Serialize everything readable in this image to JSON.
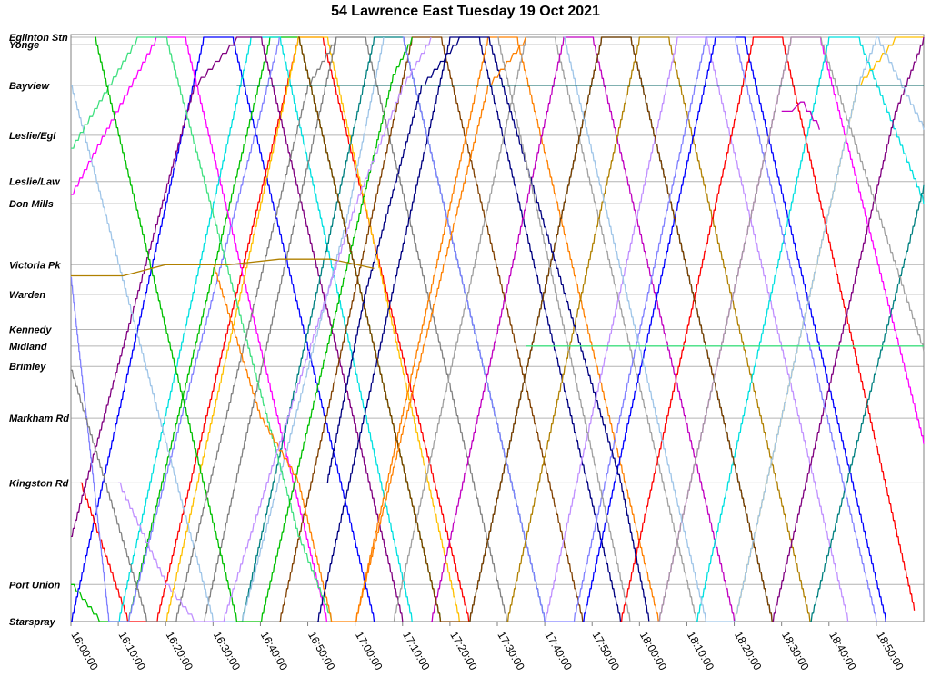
{
  "chart_data": {
    "type": "line",
    "title": "54 Lawrence East Tuesday 19 Oct 2021",
    "xlabel": "",
    "ylabel": "",
    "x_ticks": [
      "16:00:00",
      "16:10:00",
      "16:20:00",
      "16:30:00",
      "16:40:00",
      "16:50:00",
      "17:00:00",
      "17:10:00",
      "17:20:00",
      "17:30:00",
      "17:40:00",
      "17:50:00",
      "18:00:00",
      "18:10:00",
      "18:20:00",
      "18:30:00",
      "18:40:00",
      "18:50:00"
    ],
    "xlim": [
      "16:00",
      "19:00"
    ],
    "stops": [
      {
        "name": "Eglinton Stn",
        "pos": 0.0
      },
      {
        "name": "Yonge",
        "pos": 0.4
      },
      {
        "name": "Bayview",
        "pos": 2.6
      },
      {
        "name": "Leslie/Egl",
        "pos": 5.3
      },
      {
        "name": "Leslie/Law",
        "pos": 7.8
      },
      {
        "name": "Don Mills",
        "pos": 9.0
      },
      {
        "name": "Victoria Pk",
        "pos": 12.3
      },
      {
        "name": "Warden",
        "pos": 13.9
      },
      {
        "name": "Kennedy",
        "pos": 15.8
      },
      {
        "name": "Midland",
        "pos": 16.7
      },
      {
        "name": "Brimley",
        "pos": 17.8
      },
      {
        "name": "Markham Rd",
        "pos": 20.6
      },
      {
        "name": "Kingston Rd",
        "pos": 24.1
      },
      {
        "name": "Port Union",
        "pos": 29.6
      },
      {
        "name": "Starspray",
        "pos": 31.6
      }
    ],
    "grid": true,
    "legend": "none",
    "series_note": "",
    "colors": [
      "#0000ff",
      "#ff0000",
      "#00c000",
      "#ff00ff",
      "#00e0e0",
      "#ffc000",
      "#800080",
      "#808080",
      "#008080",
      "#804000",
      "#8080ff",
      "#000080",
      "#ff8000",
      "#a0a0a0",
      "#9fc5e8",
      "#c000c0",
      "#006060",
      "#b08000",
      "#40e080",
      "#c090ff"
    ],
    "series": [
      {
        "name": "",
        "points": [
          [
            "16:00",
            31.6
          ],
          [
            "16:28",
            0.0
          ],
          [
            "16:34",
            0.0
          ],
          [
            "17:04",
            31.6
          ]
        ]
      },
      {
        "name": "",
        "points": [
          [
            "16:02",
            24.1
          ],
          [
            "16:12",
            31.6
          ],
          [
            "16:18",
            31.6
          ],
          [
            "16:48",
            0.0
          ],
          [
            "16:53",
            0.0
          ],
          [
            "17:24",
            31.6
          ]
        ]
      },
      {
        "name": "",
        "points": [
          [
            "16:00",
            29.6
          ],
          [
            "16:06",
            31.6
          ],
          [
            "16:12",
            31.6
          ],
          [
            "16:42",
            0.0
          ],
          [
            "16:48",
            0.0
          ],
          [
            "17:18",
            31.6
          ]
        ]
      },
      {
        "name": "",
        "points": [
          [
            "16:00",
            8.5
          ],
          [
            "16:18",
            0.0
          ],
          [
            "16:24",
            0.0
          ],
          [
            "16:54",
            31.6
          ]
        ]
      },
      {
        "name": "",
        "points": [
          [
            "16:10",
            31.6
          ],
          [
            "16:38",
            0.0
          ],
          [
            "16:44",
            0.0
          ],
          [
            "17:12",
            31.6
          ]
        ]
      },
      {
        "name": "",
        "points": [
          [
            "16:20",
            31.6
          ],
          [
            "16:48",
            0.0
          ],
          [
            "16:54",
            0.0
          ],
          [
            "17:22",
            31.6
          ]
        ]
      },
      {
        "name": "",
        "points": [
          [
            "16:00",
            27.0
          ],
          [
            "16:26",
            2.6
          ],
          [
            "16:35",
            0.0
          ],
          [
            "16:40",
            0.0
          ],
          [
            "17:10",
            31.6
          ]
        ]
      },
      {
        "name": "",
        "points": [
          [
            "16:28",
            31.6
          ],
          [
            "16:56",
            0.0
          ],
          [
            "17:02",
            0.0
          ],
          [
            "17:32",
            31.6
          ]
        ]
      },
      {
        "name": "",
        "points": [
          [
            "16:36",
            31.6
          ],
          [
            "17:04",
            0.0
          ],
          [
            "17:10",
            0.0
          ],
          [
            "17:40",
            31.6
          ]
        ]
      },
      {
        "name": "",
        "points": [
          [
            "16:44",
            31.6
          ],
          [
            "17:12",
            0.0
          ],
          [
            "17:18",
            0.0
          ],
          [
            "17:48",
            31.6
          ]
        ]
      },
      {
        "name": "",
        "points": [
          [
            "16:00",
            13.0
          ],
          [
            "16:08",
            31.6
          ],
          [
            "16:12",
            31.6
          ],
          [
            "16:40",
            4.0
          ],
          [
            "16:44",
            0.0
          ]
        ]
      },
      {
        "name": "",
        "points": [
          [
            "16:52",
            31.6
          ],
          [
            "17:20",
            0.0
          ],
          [
            "17:26",
            0.0
          ],
          [
            "17:56",
            31.6
          ]
        ]
      },
      {
        "name": "",
        "points": [
          [
            "17:00",
            31.6
          ],
          [
            "17:28",
            0.0
          ],
          [
            "17:34",
            0.0
          ],
          [
            "18:04",
            31.6
          ]
        ]
      },
      {
        "name": "",
        "points": [
          [
            "17:08",
            31.6
          ],
          [
            "17:36",
            0.0
          ],
          [
            "17:42",
            0.0
          ],
          [
            "18:12",
            31.6
          ]
        ]
      },
      {
        "name": "",
        "points": [
          [
            "16:00",
            2.6
          ],
          [
            "16:30",
            31.6
          ],
          [
            "16:36",
            31.6
          ],
          [
            "16:58",
            10.0
          ],
          [
            "17:06",
            0.0
          ]
        ]
      },
      {
        "name": "",
        "points": [
          [
            "17:16",
            31.6
          ],
          [
            "17:44",
            0.0
          ],
          [
            "17:50",
            0.0
          ],
          [
            "18:20",
            31.6
          ]
        ]
      },
      {
        "name": "",
        "points": [
          [
            "17:24",
            31.6
          ],
          [
            "17:52",
            0.0
          ],
          [
            "17:58",
            0.0
          ],
          [
            "18:28",
            31.6
          ]
        ]
      },
      {
        "name": "",
        "points": [
          [
            "17:32",
            31.6
          ],
          [
            "18:00",
            0.0
          ],
          [
            "18:06",
            0.0
          ],
          [
            "18:36",
            31.6
          ]
        ]
      },
      {
        "name": "",
        "points": [
          [
            "16:00",
            6.0
          ],
          [
            "16:14",
            0.0
          ],
          [
            "16:20",
            0.0
          ],
          [
            "16:48",
            27.0
          ],
          [
            "16:55",
            31.6
          ]
        ]
      },
      {
        "name": "",
        "points": [
          [
            "17:40",
            31.6
          ],
          [
            "18:08",
            0.0
          ],
          [
            "18:14",
            0.0
          ],
          [
            "18:44",
            31.6
          ]
        ]
      },
      {
        "name": "",
        "points": [
          [
            "17:48",
            31.6
          ],
          [
            "18:16",
            0.0
          ],
          [
            "18:22",
            0.0
          ],
          [
            "18:52",
            31.6
          ]
        ]
      },
      {
        "name": "",
        "points": [
          [
            "17:56",
            31.6
          ],
          [
            "18:24",
            0.0
          ],
          [
            "18:30",
            0.0
          ],
          [
            "18:58",
            31.0
          ]
        ]
      },
      {
        "name": "",
        "points": [
          [
            "16:05",
            0.0
          ],
          [
            "16:35",
            31.6
          ],
          [
            "16:40",
            31.6
          ],
          [
            "17:08",
            2.0
          ],
          [
            "17:12",
            0.0
          ]
        ]
      },
      {
        "name": "",
        "points": [
          [
            "18:04",
            31.6
          ],
          [
            "18:32",
            0.0
          ],
          [
            "18:38",
            0.0
          ],
          [
            "19:00",
            22.0
          ]
        ]
      },
      {
        "name": "",
        "points": [
          [
            "18:12",
            31.6
          ],
          [
            "18:40",
            0.0
          ],
          [
            "18:46",
            0.0
          ],
          [
            "19:00",
            9.0
          ]
        ]
      },
      {
        "name": "",
        "points": [
          [
            "18:20",
            31.6
          ],
          [
            "18:46",
            2.6
          ],
          [
            "18:54",
            0.0
          ],
          [
            "19:00",
            0.0
          ]
        ]
      },
      {
        "name": "",
        "points": [
          [
            "18:28",
            31.6
          ],
          [
            "18:54",
            4.0
          ],
          [
            "19:00",
            0.0
          ]
        ]
      },
      {
        "name": "",
        "points": [
          [
            "16:00",
            18.0
          ],
          [
            "16:16",
            31.6
          ],
          [
            "16:22",
            31.6
          ],
          [
            "16:50",
            2.6
          ],
          [
            "16:56",
            0.0
          ]
        ]
      },
      {
        "name": "",
        "points": [
          [
            "18:36",
            31.6
          ],
          [
            "19:00",
            8.0
          ]
        ]
      },
      {
        "name": "",
        "points": [
          [
            "16:48",
            0.0
          ],
          [
            "17:18",
            31.6
          ],
          [
            "17:24",
            31.6
          ],
          [
            "17:52",
            0.0
          ],
          [
            "17:58",
            0.0
          ],
          [
            "18:28",
            31.6
          ]
        ]
      },
      {
        "name": "",
        "points": [
          [
            "17:10",
            0.0
          ],
          [
            "17:40",
            31.6
          ],
          [
            "17:46",
            31.6
          ],
          [
            "18:14",
            0.0
          ],
          [
            "18:20",
            0.0
          ],
          [
            "18:50",
            31.6
          ]
        ]
      },
      {
        "name": "",
        "points": [
          [
            "16:54",
            24.1
          ],
          [
            "17:02",
            13.9
          ],
          [
            "17:14",
            2.6
          ],
          [
            "17:22",
            0.0
          ],
          [
            "17:28",
            0.0
          ],
          [
            "17:56",
            24.1
          ],
          [
            "18:02",
            31.6
          ]
        ]
      },
      {
        "name": "",
        "points": [
          [
            "16:30",
            12.3
          ],
          [
            "16:40",
            20.6
          ],
          [
            "16:48",
            24.1
          ],
          [
            "16:55",
            31.6
          ],
          [
            "17:00",
            31.6
          ],
          [
            "17:28",
            2.6
          ],
          [
            "17:36",
            0.0
          ]
        ]
      },
      {
        "name": "",
        "points": [
          [
            "17:30",
            0.0
          ],
          [
            "17:58",
            31.6
          ],
          [
            "18:04",
            31.6
          ],
          [
            "18:32",
            0.0
          ],
          [
            "18:38",
            0.0
          ],
          [
            "19:00",
            17.0
          ]
        ]
      },
      {
        "name": "",
        "points": [
          [
            "17:44",
            0.0
          ],
          [
            "18:14",
            31.6
          ],
          [
            "18:20",
            31.6
          ],
          [
            "18:46",
            2.6
          ],
          [
            "18:50",
            0.0
          ],
          [
            "19:00",
            5.0
          ]
        ]
      },
      {
        "name": "",
        "points": [
          [
            "18:30",
            4.0
          ],
          [
            "18:34",
            3.5
          ],
          [
            "18:38",
            5.0
          ]
        ]
      },
      {
        "name": "",
        "points": [
          [
            "16:35",
            2.6
          ],
          [
            "19:00",
            2.6
          ]
        ]
      },
      {
        "name": "",
        "points": [
          [
            "16:00",
            12.9
          ],
          [
            "16:20",
            12.3
          ],
          [
            "16:44",
            12.0
          ],
          [
            "17:04",
            12.5
          ]
        ]
      },
      {
        "name": "",
        "points": [
          [
            "17:36",
            16.7
          ],
          [
            "18:20",
            16.7
          ],
          [
            "19:00",
            16.7
          ]
        ]
      },
      {
        "name": "",
        "points": [
          [
            "16:10",
            24.1
          ],
          [
            "16:20",
            29.6
          ],
          [
            "16:26",
            31.6
          ],
          [
            "16:32",
            31.6
          ],
          [
            "17:00",
            9.0
          ],
          [
            "17:10",
            2.6
          ],
          [
            "17:16",
            0.0
          ]
        ]
      }
    ]
  }
}
